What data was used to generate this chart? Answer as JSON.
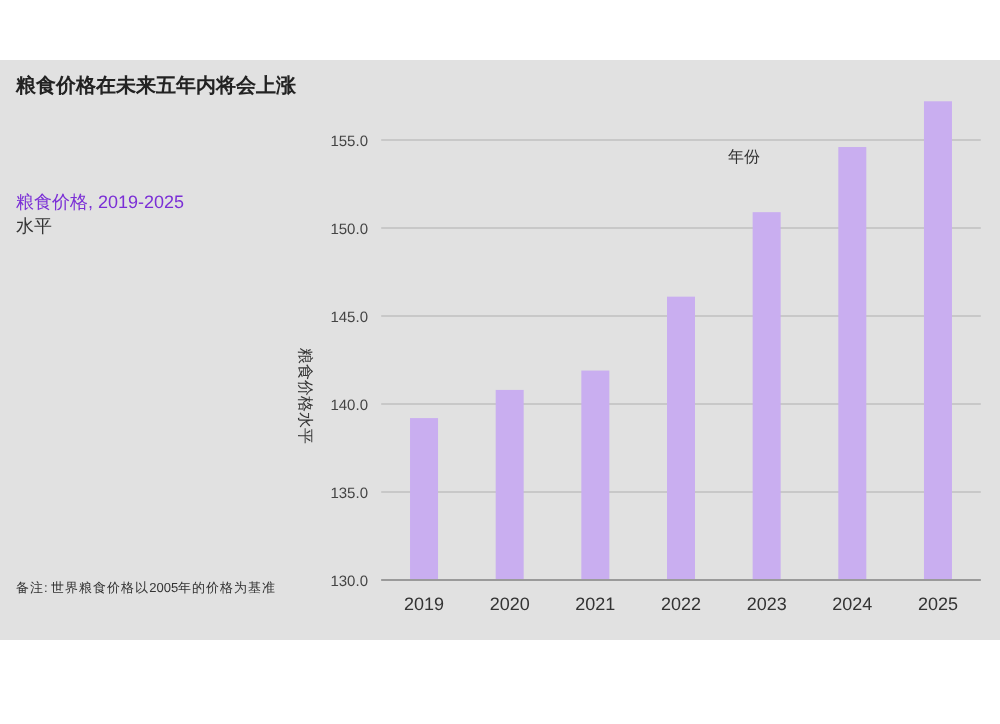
{
  "chart_data": {
    "type": "bar",
    "title": "粮食价格在未来五年内将会上涨",
    "subtitle": "粮食价格, 2019-2025",
    "xlabel": "年份",
    "ylabel": "粮食价格水平",
    "annotations": [
      "水平",
      "备注: 世界粮食价格以2005年的价格为基准"
    ],
    "categories": [
      "2019",
      "2020",
      "2021",
      "2022",
      "2023",
      "2024",
      "2025"
    ],
    "values": [
      139.2,
      140.8,
      141.9,
      146.1,
      150.9,
      154.6,
      157.2
    ],
    "color": "#c9aef0",
    "ylim": [
      130,
      157.5
    ],
    "yticks": [
      {
        "value": 130,
        "label": "130.0"
      },
      {
        "value": 135,
        "label": "135.0"
      },
      {
        "value": 140,
        "label": "140.0"
      },
      {
        "value": 145,
        "label": "145.0"
      },
      {
        "value": 150,
        "label": "150.0"
      },
      {
        "value": 155,
        "label": "155.0"
      }
    ],
    "grid": "y"
  }
}
